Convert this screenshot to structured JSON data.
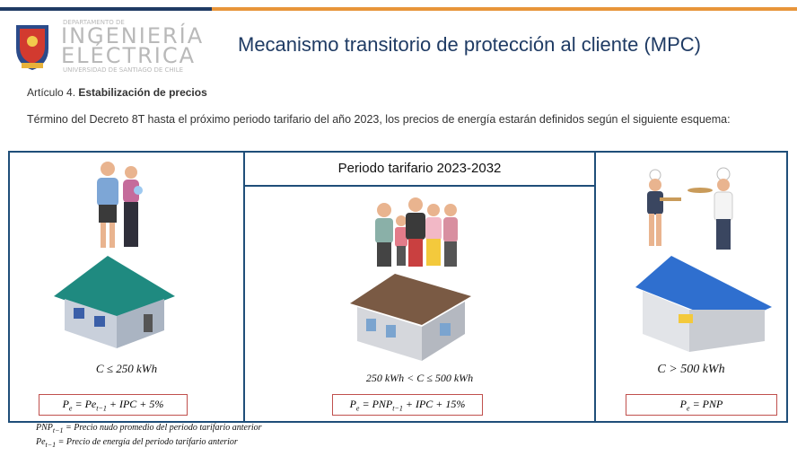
{
  "header": {
    "department": [
      "DEPARTAMENTO DE",
      "INGENIERÍA",
      "ELÉCTRICA",
      "UNIVERSIDAD DE SANTIAGO DE CHILE"
    ],
    "title": "Mecanismo transitorio de protección al cliente (MPC)"
  },
  "article": {
    "label": "Artículo 4.",
    "heading": "Estabilización de precios",
    "paragraph": "Término del Decreto 8T hasta el próximo periodo tarifario del año 2023, los precios de energía estarán definidos según el siguiente esquema:"
  },
  "period_header": "Periodo tarifario 2023-2032",
  "columns": [
    {
      "condition": "C ≤ 250 kWh",
      "formula": [
        {
          "text": "P"
        },
        {
          "text": "e",
          "sub": true
        },
        {
          "text": " = Pe"
        },
        {
          "text": "t−1",
          "sub": true
        },
        {
          "text": " + IPC + 5%"
        }
      ]
    },
    {
      "condition": "250 kWh < C ≤ 500 kWh",
      "formula": [
        {
          "text": "P"
        },
        {
          "text": "e",
          "sub": true
        },
        {
          "text": " = PNP"
        },
        {
          "text": "t−1",
          "sub": true
        },
        {
          "text": " + IPC + 15%"
        }
      ]
    },
    {
      "condition": "C > 500 kWh",
      "formula": [
        {
          "text": "P"
        },
        {
          "text": "e",
          "sub": true
        },
        {
          "text": " = PNP"
        }
      ]
    }
  ],
  "footnotes": [
    [
      {
        "text": "PNP"
      },
      {
        "text": "t−1",
        "sub": true
      },
      {
        "text": " = Precio nudo promedio del periodo tarifario anterior"
      }
    ],
    [
      {
        "text": "Pe"
      },
      {
        "text": "t−1",
        "sub": true
      },
      {
        "text": " = Precio de energía del periodo tarifario anterior"
      }
    ]
  ]
}
